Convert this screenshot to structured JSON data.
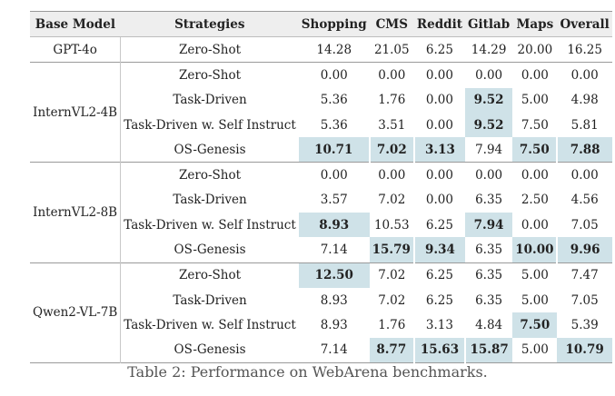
{
  "table": {
    "headers": [
      "Base Model",
      "Strategies",
      "Shopping",
      "CMS",
      "Reddit",
      "Gitlab",
      "Maps",
      "Overall"
    ],
    "groups": [
      {
        "model": "GPT-4o",
        "rows": [
          {
            "strategy": "Zero-Shot",
            "values": [
              "14.28",
              "21.05",
              "6.25",
              "14.29",
              "20.00",
              "16.25"
            ],
            "highlight": [
              false,
              false,
              false,
              false,
              false,
              false
            ],
            "bold": [
              false,
              false,
              false,
              false,
              false,
              false
            ]
          }
        ]
      },
      {
        "model": "InternVL2-4B",
        "rows": [
          {
            "strategy": "Zero-Shot",
            "values": [
              "0.00",
              "0.00",
              "0.00",
              "0.00",
              "0.00",
              "0.00"
            ],
            "highlight": [
              false,
              false,
              false,
              false,
              false,
              false
            ],
            "bold": [
              false,
              false,
              false,
              false,
              false,
              false
            ]
          },
          {
            "strategy": "Task-Driven",
            "values": [
              "5.36",
              "1.76",
              "0.00",
              "9.52",
              "5.00",
              "4.98"
            ],
            "highlight": [
              false,
              false,
              false,
              true,
              false,
              false
            ],
            "bold": [
              false,
              false,
              false,
              true,
              false,
              false
            ]
          },
          {
            "strategy": "Task-Driven w. Self Instruct",
            "values": [
              "5.36",
              "3.51",
              "0.00",
              "9.52",
              "7.50",
              "5.81"
            ],
            "highlight": [
              false,
              false,
              false,
              true,
              false,
              false
            ],
            "bold": [
              false,
              false,
              false,
              true,
              false,
              false
            ]
          },
          {
            "strategy": "OS-Genesis",
            "values": [
              "10.71",
              "7.02",
              "3.13",
              "7.94",
              "7.50",
              "7.88"
            ],
            "highlight": [
              true,
              true,
              true,
              false,
              true,
              true
            ],
            "bold": [
              true,
              true,
              true,
              false,
              true,
              true
            ]
          }
        ]
      },
      {
        "model": "InternVL2-8B",
        "rows": [
          {
            "strategy": "Zero-Shot",
            "values": [
              "0.00",
              "0.00",
              "0.00",
              "0.00",
              "0.00",
              "0.00"
            ],
            "highlight": [
              false,
              false,
              false,
              false,
              false,
              false
            ],
            "bold": [
              false,
              false,
              false,
              false,
              false,
              false
            ]
          },
          {
            "strategy": "Task-Driven",
            "values": [
              "3.57",
              "7.02",
              "0.00",
              "6.35",
              "2.50",
              "4.56"
            ],
            "highlight": [
              false,
              false,
              false,
              false,
              false,
              false
            ],
            "bold": [
              false,
              false,
              false,
              false,
              false,
              false
            ]
          },
          {
            "strategy": "Task-Driven w. Self Instruct",
            "values": [
              "8.93",
              "10.53",
              "6.25",
              "7.94",
              "0.00",
              "7.05"
            ],
            "highlight": [
              true,
              false,
              false,
              true,
              false,
              false
            ],
            "bold": [
              true,
              false,
              false,
              true,
              false,
              false
            ]
          },
          {
            "strategy": "OS-Genesis",
            "values": [
              "7.14",
              "15.79",
              "9.34",
              "6.35",
              "10.00",
              "9.96"
            ],
            "highlight": [
              false,
              true,
              true,
              false,
              true,
              true
            ],
            "bold": [
              false,
              true,
              true,
              false,
              true,
              true
            ]
          }
        ]
      },
      {
        "model": "Qwen2-VL-7B",
        "rows": [
          {
            "strategy": "Zero-Shot",
            "values": [
              "12.50",
              "7.02",
              "6.25",
              "6.35",
              "5.00",
              "7.47"
            ],
            "highlight": [
              true,
              false,
              false,
              false,
              false,
              false
            ],
            "bold": [
              true,
              false,
              false,
              false,
              false,
              false
            ]
          },
          {
            "strategy": "Task-Driven",
            "values": [
              "8.93",
              "7.02",
              "6.25",
              "6.35",
              "5.00",
              "7.05"
            ],
            "highlight": [
              false,
              false,
              false,
              false,
              false,
              false
            ],
            "bold": [
              false,
              false,
              false,
              false,
              false,
              false
            ]
          },
          {
            "strategy": "Task-Driven w. Self Instruct",
            "values": [
              "8.93",
              "1.76",
              "3.13",
              "4.84",
              "7.50",
              "5.39"
            ],
            "highlight": [
              false,
              false,
              false,
              false,
              true,
              false
            ],
            "bold": [
              false,
              false,
              false,
              false,
              true,
              false
            ]
          },
          {
            "strategy": "OS-Genesis",
            "values": [
              "7.14",
              "8.77",
              "15.63",
              "15.87",
              "5.00",
              "10.79"
            ],
            "highlight": [
              false,
              true,
              true,
              true,
              false,
              true
            ],
            "bold": [
              false,
              true,
              true,
              true,
              false,
              true
            ]
          }
        ]
      }
    ]
  },
  "caption": "Table 2: Performance on WebArena benchmarks.",
  "colors": {
    "highlight": "#cfe2e8",
    "header_bg": "#eeeeee"
  }
}
